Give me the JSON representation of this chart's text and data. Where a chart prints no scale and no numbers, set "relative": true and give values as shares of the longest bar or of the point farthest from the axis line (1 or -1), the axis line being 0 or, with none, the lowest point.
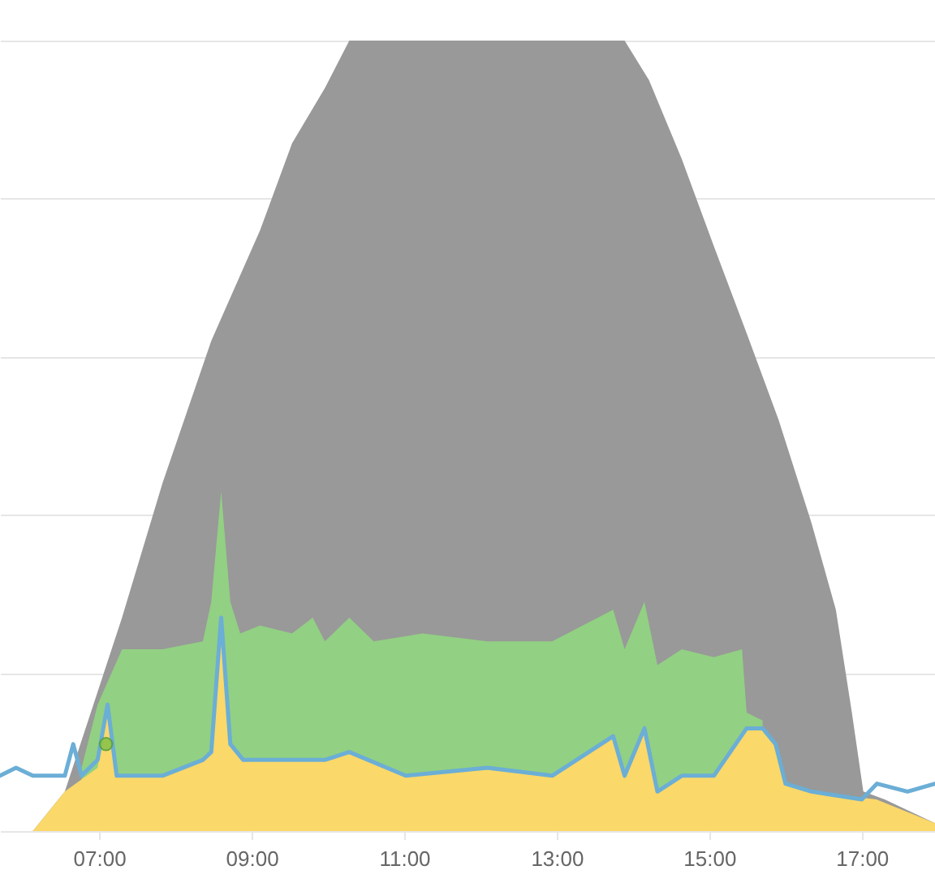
{
  "chart_data": {
    "type": "area",
    "relative": true,
    "grid": "y",
    "xlim": [
      5.7,
      17.96
    ],
    "xticks": [
      {
        "value": 7,
        "label": "07:00"
      },
      {
        "value": 9,
        "label": "09:00"
      },
      {
        "value": 11,
        "label": "11:00"
      },
      {
        "value": 13,
        "label": "13:00"
      },
      {
        "value": 15,
        "label": "15:00"
      },
      {
        "value": 17,
        "label": "17:00"
      }
    ],
    "series": [
      {
        "color": "#999999",
        "x": [
          6.13,
          6.55,
          7.3,
          7.83,
          8.47,
          9.11,
          9.53,
          9.96,
          10.28,
          13.89,
          14.21,
          14.64,
          15.06,
          15.49,
          15.91,
          16.34,
          16.66,
          16.87,
          17.02,
          17.3,
          17.96
        ],
        "values": [
          0,
          0.05,
          0.27,
          0.44,
          0.62,
          0.76,
          0.87,
          0.94,
          1.0,
          1.0,
          0.95,
          0.85,
          0.74,
          0.63,
          0.52,
          0.39,
          0.28,
          0.15,
          0.05,
          0.04,
          0.01
        ]
      },
      {
        "color": "#92d083",
        "x": [
          6.77,
          6.98,
          7.3,
          7.83,
          8.36,
          8.47,
          8.6,
          8.72,
          8.85,
          9.11,
          9.53,
          9.8,
          9.96,
          10.28,
          10.6,
          11.24,
          12.09,
          12.94,
          13.74,
          13.89,
          14.15,
          14.32,
          14.64,
          15.06,
          15.43,
          15.49,
          15.7
        ],
        "values": [
          0.08,
          0.16,
          0.23,
          0.23,
          0.24,
          0.29,
          0.43,
          0.29,
          0.25,
          0.26,
          0.25,
          0.27,
          0.24,
          0.27,
          0.24,
          0.25,
          0.24,
          0.24,
          0.28,
          0.23,
          0.29,
          0.21,
          0.23,
          0.22,
          0.23,
          0.15,
          0.14
        ]
      },
      {
        "color": "#fad869",
        "x": [
          6.13,
          6.55,
          6.98,
          7.11,
          7.23,
          7.83,
          8.36,
          8.47,
          8.6,
          8.72,
          8.89,
          9.96,
          10.28,
          11.02,
          12.09,
          12.94,
          13.74,
          13.89,
          14.15,
          14.32,
          14.64,
          15.06,
          15.49,
          15.7,
          15.87,
          16.0,
          16.34,
          17.19,
          17.96
        ],
        "values": [
          0,
          0.05,
          0.08,
          0.16,
          0.07,
          0.07,
          0.09,
          0.1,
          0.27,
          0.11,
          0.09,
          0.09,
          0.1,
          0.07,
          0.08,
          0.07,
          0.12,
          0.07,
          0.13,
          0.05,
          0.07,
          0.07,
          0.13,
          0.13,
          0.11,
          0.06,
          0.05,
          0.04,
          0.01
        ]
      },
      {
        "type": "line",
        "color": "#6baed6",
        "x": [
          5.7,
          5.91,
          6.13,
          6.55,
          6.66,
          6.77,
          6.98,
          7.11,
          7.23,
          7.83,
          8.36,
          8.47,
          8.6,
          8.72,
          8.89,
          9.96,
          10.28,
          11.02,
          12.09,
          12.94,
          13.74,
          13.89,
          14.15,
          14.32,
          14.64,
          15.06,
          15.49,
          15.7,
          15.87,
          16.0,
          16.34,
          17.0,
          17.2,
          17.6,
          17.96
        ],
        "values": [
          0.07,
          0.08,
          0.07,
          0.07,
          0.11,
          0.07,
          0.09,
          0.16,
          0.07,
          0.07,
          0.09,
          0.1,
          0.27,
          0.11,
          0.09,
          0.09,
          0.1,
          0.07,
          0.08,
          0.07,
          0.12,
          0.07,
          0.13,
          0.05,
          0.07,
          0.07,
          0.13,
          0.13,
          0.11,
          0.06,
          0.05,
          0.04,
          0.06,
          0.05,
          0.06
        ]
      },
      {
        "type": "scatter",
        "color": "#8bc34a",
        "marker": "circle",
        "x": [
          7.09
        ],
        "values": [
          0.11
        ]
      }
    ]
  }
}
